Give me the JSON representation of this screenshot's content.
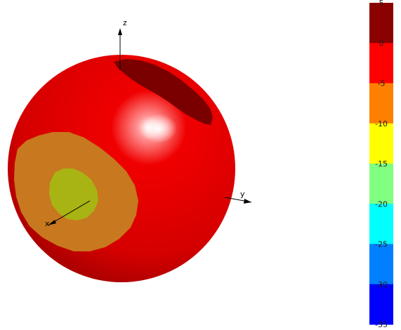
{
  "axes": {
    "z_label": "z",
    "y_label": "y",
    "x_label": "x"
  },
  "colorbar": {
    "bands": [
      {
        "color": "#8b0000"
      },
      {
        "color": "#ff0000"
      },
      {
        "color": "#ff7f00"
      },
      {
        "color": "#ffff00"
      },
      {
        "color": "#80ff80"
      },
      {
        "color": "#00ffff"
      },
      {
        "color": "#0080ff"
      },
      {
        "color": "#0000ff"
      }
    ],
    "tick_labels": [
      "5",
      "0",
      "-5",
      "-10",
      "-15",
      "-20",
      "-25",
      "-30",
      "-35"
    ]
  },
  "sphere_colors": {
    "base": "#e60000",
    "dark_patch": "#7a0000",
    "orange_patch": "#c8781e",
    "yellow_patch": "#a8b414"
  }
}
